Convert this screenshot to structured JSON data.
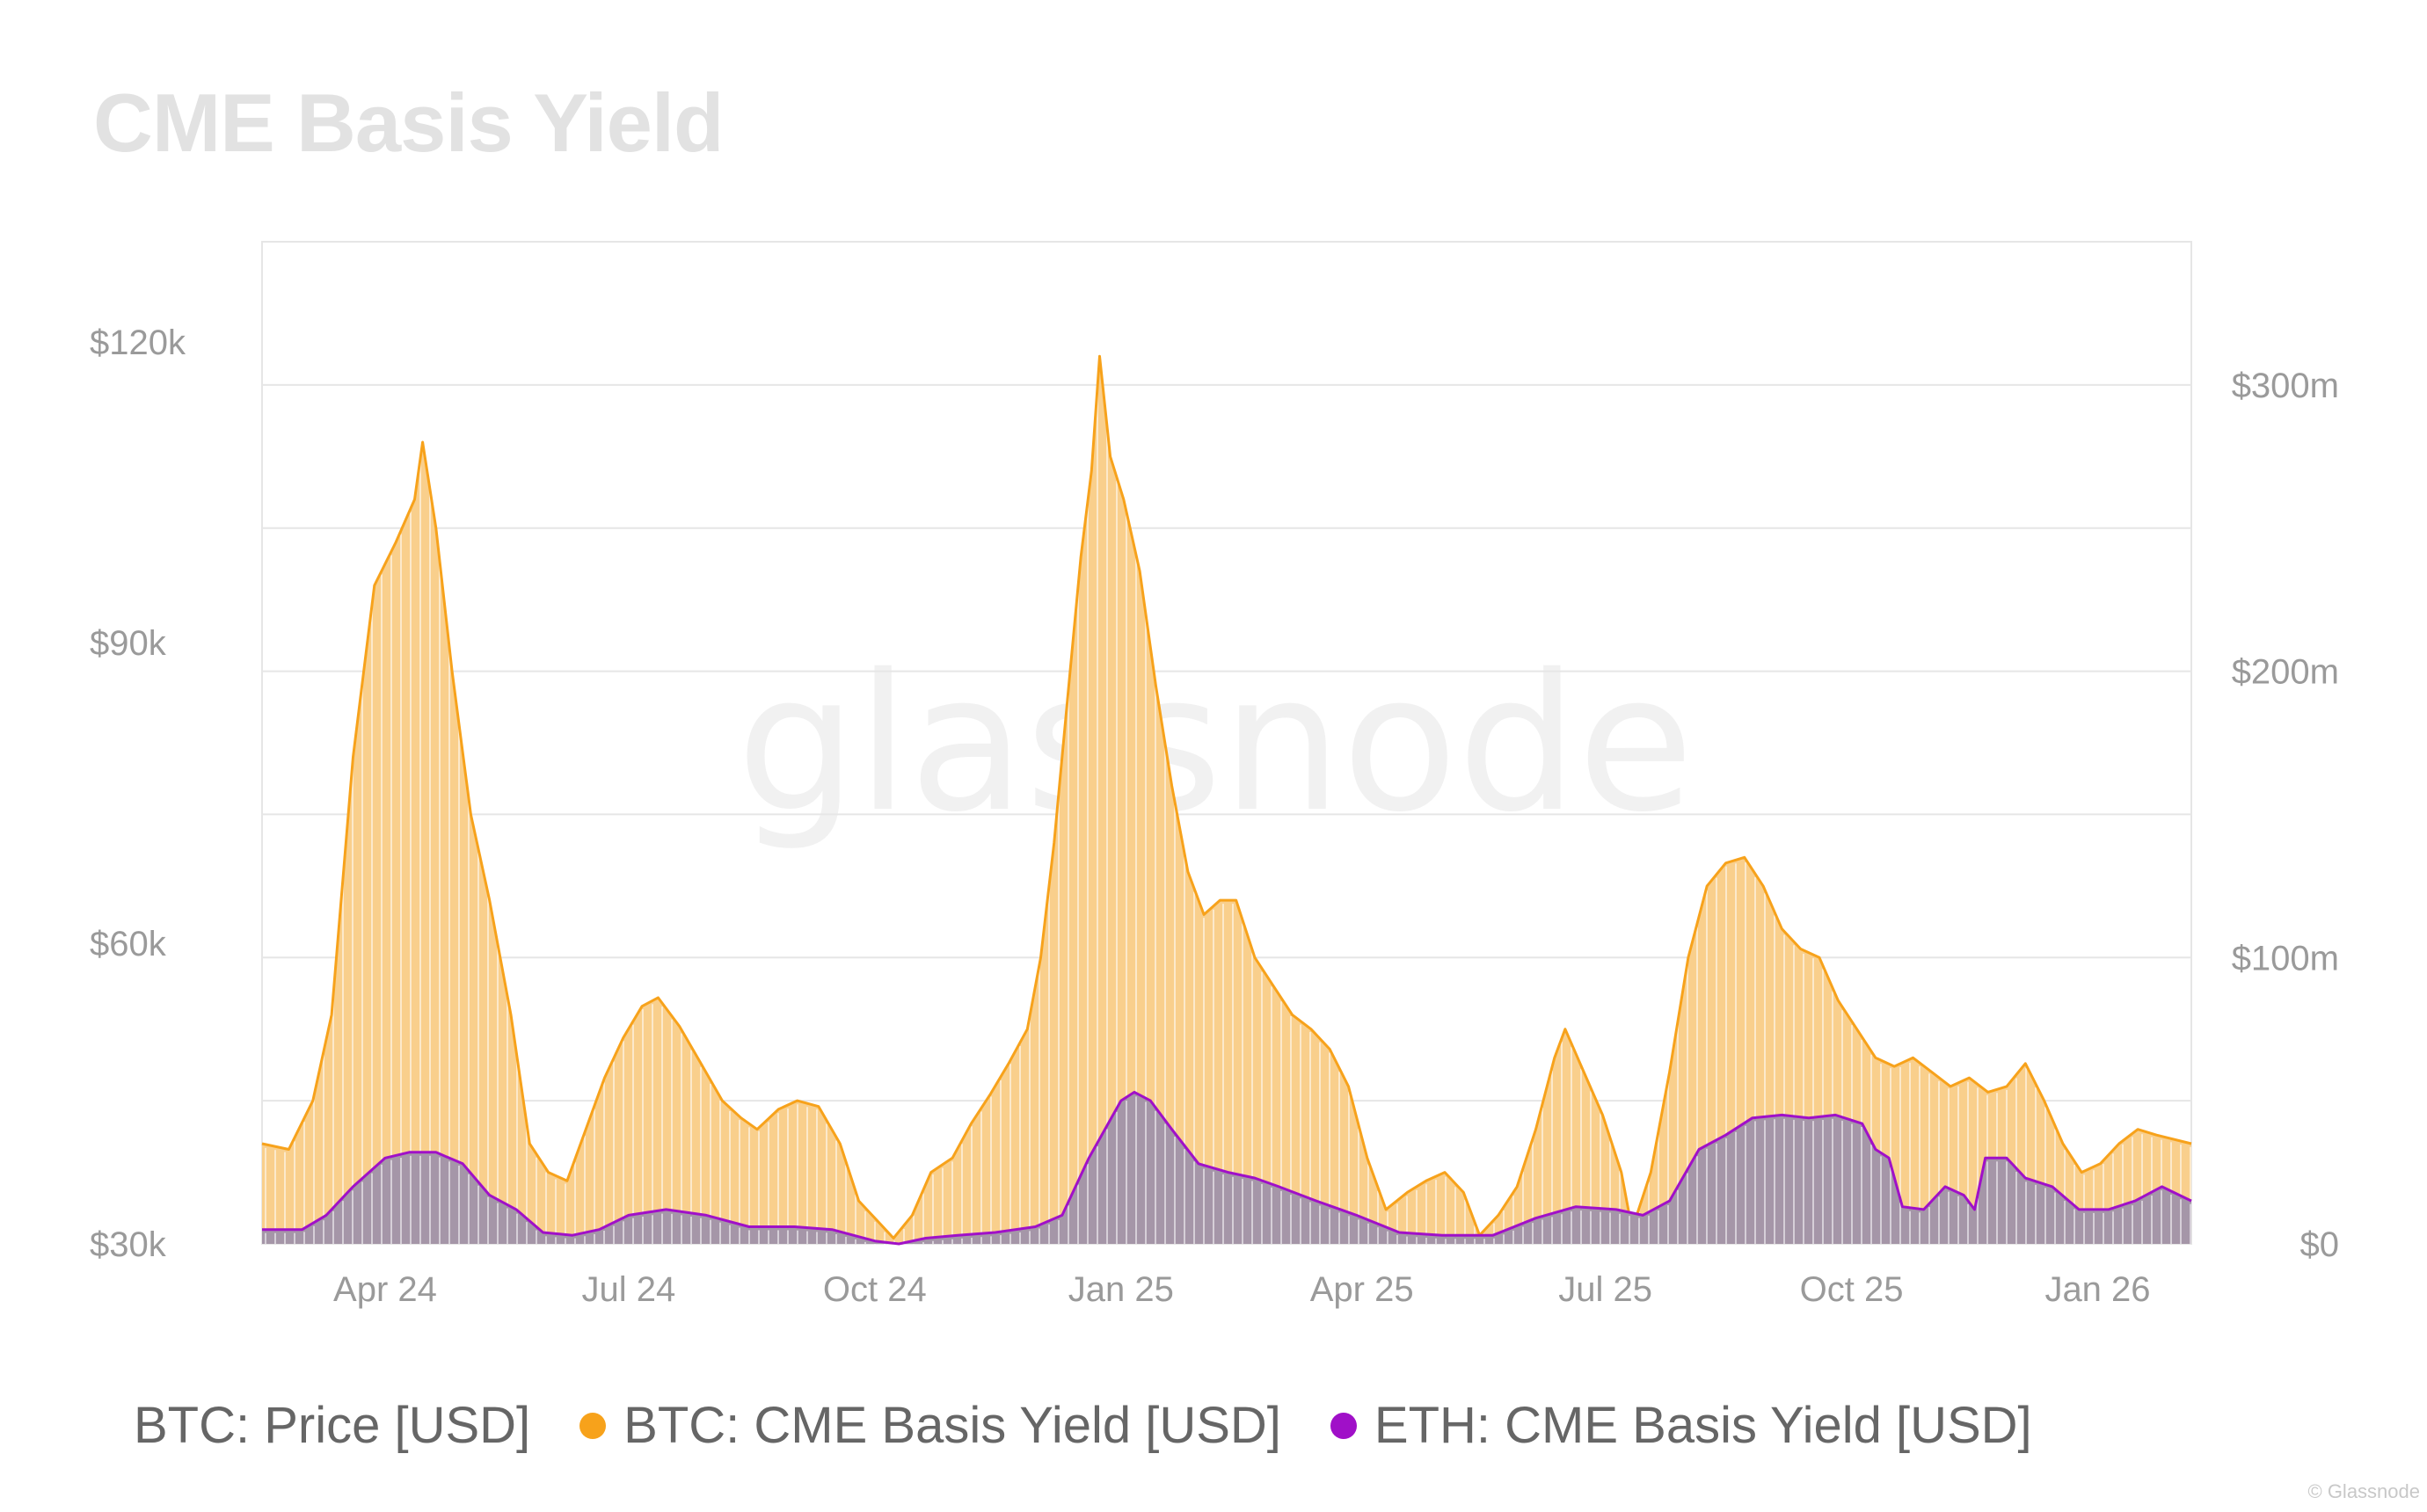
{
  "title": "CME Basis Yield",
  "watermark": "glassnode",
  "credit": "© Glassnode",
  "colors": {
    "btc_yield": "#f7a21b",
    "btc_yield_fill": "#f9cf8c",
    "eth_yield": "#a010c8",
    "eth_yield_fill": "#a596a8",
    "grid": "#e6e6e6",
    "legend_btc": "#f7a21b",
    "legend_eth": "#a010c8"
  },
  "legend": {
    "price": "BTC: Price [USD]",
    "btc_yield": "BTC: CME Basis Yield [USD]",
    "eth_yield": "ETH: CME Basis Yield [USD]"
  },
  "chart_data": {
    "type": "area",
    "title": "CME Basis Yield",
    "x_range": [
      "2024-02-15",
      "2026-02-05"
    ],
    "x_ticks": [
      {
        "label": "Apr 24",
        "date": "2024-04-01"
      },
      {
        "label": "Jul 24",
        "date": "2024-07-01"
      },
      {
        "label": "Oct 24",
        "date": "2024-10-01"
      },
      {
        "label": "Jan 25",
        "date": "2025-01-01"
      },
      {
        "label": "Apr 25",
        "date": "2025-04-01"
      },
      {
        "label": "Jul 25",
        "date": "2025-07-01"
      },
      {
        "label": "Oct 25",
        "date": "2025-10-01"
      },
      {
        "label": "Jan 26",
        "date": "2026-01-01"
      }
    ],
    "y_left": {
      "label": "BTC: Price [USD]",
      "range": [
        30000,
        130000
      ],
      "ticks": [
        {
          "value": 30000,
          "label": "$30k"
        },
        {
          "value": 60000,
          "label": "$60k"
        },
        {
          "value": 90000,
          "label": "$90k"
        },
        {
          "value": 120000,
          "label": "$120k"
        }
      ]
    },
    "y_right": {
      "label": "USD",
      "range": [
        0,
        350
      ],
      "unit": "millions",
      "ticks": [
        {
          "value": 0,
          "label": "$0"
        },
        {
          "value": 100,
          "label": "$100m"
        },
        {
          "value": 200,
          "label": "$200m"
        },
        {
          "value": 300,
          "label": "$300m"
        }
      ]
    },
    "series": [
      {
        "name": "BTC: CME Basis Yield [USD]",
        "axis": "right",
        "points": [
          [
            "2024-02-15",
            35
          ],
          [
            "2024-02-25",
            33
          ],
          [
            "2024-03-05",
            50
          ],
          [
            "2024-03-12",
            80
          ],
          [
            "2024-03-20",
            170
          ],
          [
            "2024-03-28",
            230
          ],
          [
            "2024-04-05",
            245
          ],
          [
            "2024-04-12",
            260
          ],
          [
            "2024-04-15",
            280
          ],
          [
            "2024-04-20",
            250
          ],
          [
            "2024-04-26",
            200
          ],
          [
            "2024-05-03",
            150
          ],
          [
            "2024-05-10",
            120
          ],
          [
            "2024-05-18",
            80
          ],
          [
            "2024-05-25",
            35
          ],
          [
            "2024-06-01",
            25
          ],
          [
            "2024-06-08",
            22
          ],
          [
            "2024-06-15",
            40
          ],
          [
            "2024-06-22",
            58
          ],
          [
            "2024-06-29",
            72
          ],
          [
            "2024-07-06",
            83
          ],
          [
            "2024-07-12",
            86
          ],
          [
            "2024-07-20",
            76
          ],
          [
            "2024-07-28",
            63
          ],
          [
            "2024-08-05",
            50
          ],
          [
            "2024-08-12",
            44
          ],
          [
            "2024-08-18",
            40
          ],
          [
            "2024-08-26",
            47
          ],
          [
            "2024-09-02",
            50
          ],
          [
            "2024-09-10",
            48
          ],
          [
            "2024-09-18",
            35
          ],
          [
            "2024-09-25",
            15
          ],
          [
            "2024-10-02",
            8
          ],
          [
            "2024-10-08",
            2
          ],
          [
            "2024-10-15",
            10
          ],
          [
            "2024-10-22",
            25
          ],
          [
            "2024-10-30",
            30
          ],
          [
            "2024-11-06",
            42
          ],
          [
            "2024-11-13",
            52
          ],
          [
            "2024-11-20",
            63
          ],
          [
            "2024-11-27",
            75
          ],
          [
            "2024-12-02",
            100
          ],
          [
            "2024-12-07",
            140
          ],
          [
            "2024-12-12",
            190
          ],
          [
            "2024-12-17",
            240
          ],
          [
            "2024-12-21",
            270
          ],
          [
            "2024-12-24",
            310
          ],
          [
            "2024-12-28",
            275
          ],
          [
            "2025-01-02",
            260
          ],
          [
            "2025-01-08",
            235
          ],
          [
            "2025-01-14",
            195
          ],
          [
            "2025-01-20",
            160
          ],
          [
            "2025-01-26",
            130
          ],
          [
            "2025-02-01",
            115
          ],
          [
            "2025-02-07",
            120
          ],
          [
            "2025-02-13",
            120
          ],
          [
            "2025-02-20",
            100
          ],
          [
            "2025-02-27",
            90
          ],
          [
            "2025-03-06",
            80
          ],
          [
            "2025-03-13",
            75
          ],
          [
            "2025-03-20",
            68
          ],
          [
            "2025-03-27",
            55
          ],
          [
            "2025-04-03",
            30
          ],
          [
            "2025-04-10",
            12
          ],
          [
            "2025-04-18",
            18
          ],
          [
            "2025-04-25",
            22
          ],
          [
            "2025-05-02",
            25
          ],
          [
            "2025-05-09",
            18
          ],
          [
            "2025-05-15",
            3
          ],
          [
            "2025-05-22",
            10
          ],
          [
            "2025-05-29",
            20
          ],
          [
            "2025-06-05",
            40
          ],
          [
            "2025-06-12",
            65
          ],
          [
            "2025-06-16",
            75
          ],
          [
            "2025-06-23",
            60
          ],
          [
            "2025-06-30",
            45
          ],
          [
            "2025-07-07",
            25
          ],
          [
            "2025-07-11",
            5
          ],
          [
            "2025-07-18",
            25
          ],
          [
            "2025-07-25",
            60
          ],
          [
            "2025-08-01",
            100
          ],
          [
            "2025-08-08",
            125
          ],
          [
            "2025-08-15",
            133
          ],
          [
            "2025-08-22",
            135
          ],
          [
            "2025-08-29",
            125
          ],
          [
            "2025-09-05",
            110
          ],
          [
            "2025-09-12",
            103
          ],
          [
            "2025-09-19",
            100
          ],
          [
            "2025-09-26",
            85
          ],
          [
            "2025-10-03",
            75
          ],
          [
            "2025-10-10",
            65
          ],
          [
            "2025-10-17",
            62
          ],
          [
            "2025-10-24",
            65
          ],
          [
            "2025-10-31",
            60
          ],
          [
            "2025-11-07",
            55
          ],
          [
            "2025-11-14",
            58
          ],
          [
            "2025-11-21",
            53
          ],
          [
            "2025-11-28",
            55
          ],
          [
            "2025-12-05",
            63
          ],
          [
            "2025-12-12",
            50
          ],
          [
            "2025-12-19",
            35
          ],
          [
            "2025-12-26",
            25
          ],
          [
            "2026-01-02",
            28
          ],
          [
            "2026-01-09",
            35
          ],
          [
            "2026-01-16",
            40
          ],
          [
            "2026-01-23",
            38
          ],
          [
            "2026-02-05",
            35
          ]
        ]
      },
      {
        "name": "ETH: CME Basis Yield [USD]",
        "axis": "right",
        "points": [
          [
            "2024-02-15",
            5
          ],
          [
            "2024-03-01",
            5
          ],
          [
            "2024-03-10",
            10
          ],
          [
            "2024-03-20",
            20
          ],
          [
            "2024-04-01",
            30
          ],
          [
            "2024-04-10",
            32
          ],
          [
            "2024-04-20",
            32
          ],
          [
            "2024-04-30",
            28
          ],
          [
            "2024-05-10",
            17
          ],
          [
            "2024-05-20",
            12
          ],
          [
            "2024-05-30",
            4
          ],
          [
            "2024-06-10",
            3
          ],
          [
            "2024-06-20",
            5
          ],
          [
            "2024-07-01",
            10
          ],
          [
            "2024-07-15",
            12
          ],
          [
            "2024-07-30",
            10
          ],
          [
            "2024-08-15",
            6
          ],
          [
            "2024-09-01",
            6
          ],
          [
            "2024-09-15",
            5
          ],
          [
            "2024-10-01",
            1
          ],
          [
            "2024-10-10",
            0
          ],
          [
            "2024-10-20",
            2
          ],
          [
            "2024-11-01",
            3
          ],
          [
            "2024-11-15",
            4
          ],
          [
            "2024-11-30",
            6
          ],
          [
            "2024-12-10",
            10
          ],
          [
            "2024-12-20",
            30
          ],
          [
            "2025-01-01",
            50
          ],
          [
            "2025-01-06",
            53
          ],
          [
            "2025-01-12",
            50
          ],
          [
            "2025-01-20",
            40
          ],
          [
            "2025-01-30",
            28
          ],
          [
            "2025-02-10",
            25
          ],
          [
            "2025-02-20",
            23
          ],
          [
            "2025-03-01",
            20
          ],
          [
            "2025-03-15",
            15
          ],
          [
            "2025-03-30",
            10
          ],
          [
            "2025-04-15",
            4
          ],
          [
            "2025-05-01",
            3
          ],
          [
            "2025-05-20",
            3
          ],
          [
            "2025-06-05",
            9
          ],
          [
            "2025-06-20",
            13
          ],
          [
            "2025-07-05",
            12
          ],
          [
            "2025-07-15",
            10
          ],
          [
            "2025-07-25",
            15
          ],
          [
            "2025-08-05",
            33
          ],
          [
            "2025-08-15",
            38
          ],
          [
            "2025-08-25",
            44
          ],
          [
            "2025-09-05",
            45
          ],
          [
            "2025-09-15",
            44
          ],
          [
            "2025-09-25",
            45
          ],
          [
            "2025-10-05",
            42
          ],
          [
            "2025-10-10",
            33
          ],
          [
            "2025-10-15",
            30
          ],
          [
            "2025-10-20",
            13
          ],
          [
            "2025-10-28",
            12
          ],
          [
            "2025-11-05",
            20
          ],
          [
            "2025-11-12",
            17
          ],
          [
            "2025-11-16",
            12
          ],
          [
            "2025-11-20",
            30
          ],
          [
            "2025-11-28",
            30
          ],
          [
            "2025-12-05",
            23
          ],
          [
            "2025-12-15",
            20
          ],
          [
            "2025-12-25",
            12
          ],
          [
            "2026-01-05",
            12
          ],
          [
            "2026-01-15",
            15
          ],
          [
            "2026-01-25",
            20
          ],
          [
            "2026-02-05",
            15
          ]
        ]
      }
    ]
  }
}
